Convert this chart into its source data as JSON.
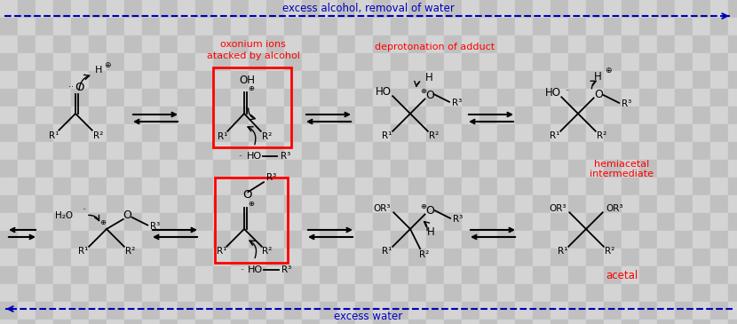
{
  "fig_width": 8.3,
  "fig_height": 3.65,
  "dpi": 100,
  "checker_light": "#d4d4d4",
  "checker_dark": "#c0c0c0",
  "checker_size_pts": 20,
  "top_text": "excess alcohol, removal of water",
  "bottom_text": "excess water",
  "arrow_color": "#0000bb",
  "red_label_1_line1": "oxonium ions",
  "red_label_1_line2": "atacked by alcohol",
  "red_label_2": "deprotonation of adduct",
  "label_hemiacetal_1": "hemiacetal",
  "label_hemiacetal_2": "intermediate",
  "label_acetal": "acetal"
}
